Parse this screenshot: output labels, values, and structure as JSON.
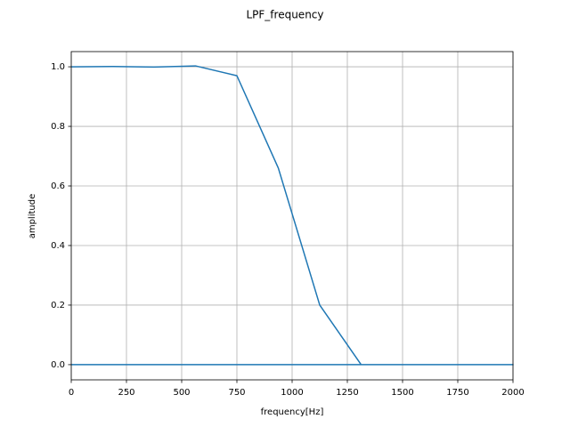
{
  "chart_data": {
    "type": "line",
    "title": "LPF_frequency",
    "xlabel": "frequency[Hz]",
    "ylabel": "amplitude",
    "x": [
      0,
      187.5,
      375,
      562.5,
      750,
      937.5,
      1125,
      1312.5,
      1500,
      1687.5,
      1875,
      2000,
      0
    ],
    "values": [
      1.0,
      1.001,
      0.999,
      1.003,
      0.97,
      0.66,
      0.2,
      0.0,
      0.0,
      0.0,
      0.0,
      0.0,
      0.0
    ],
    "color": "#1f77b4",
    "xlim": [
      0,
      2000
    ],
    "xticks": [
      0,
      250,
      500,
      750,
      1000,
      1250,
      1500,
      1750,
      2000
    ],
    "ylim": [
      -0.051,
      1.051
    ],
    "yticks": [
      {
        "value": 0,
        "label": "0.0"
      },
      {
        "value": 0.2,
        "label": "0.2"
      },
      {
        "value": 0.4,
        "label": "0.4"
      },
      {
        "value": 0.6,
        "label": "0.6"
      },
      {
        "value": 0.8,
        "label": "0.8"
      },
      {
        "value": 1,
        "label": "1.0"
      }
    ],
    "grid": true
  }
}
